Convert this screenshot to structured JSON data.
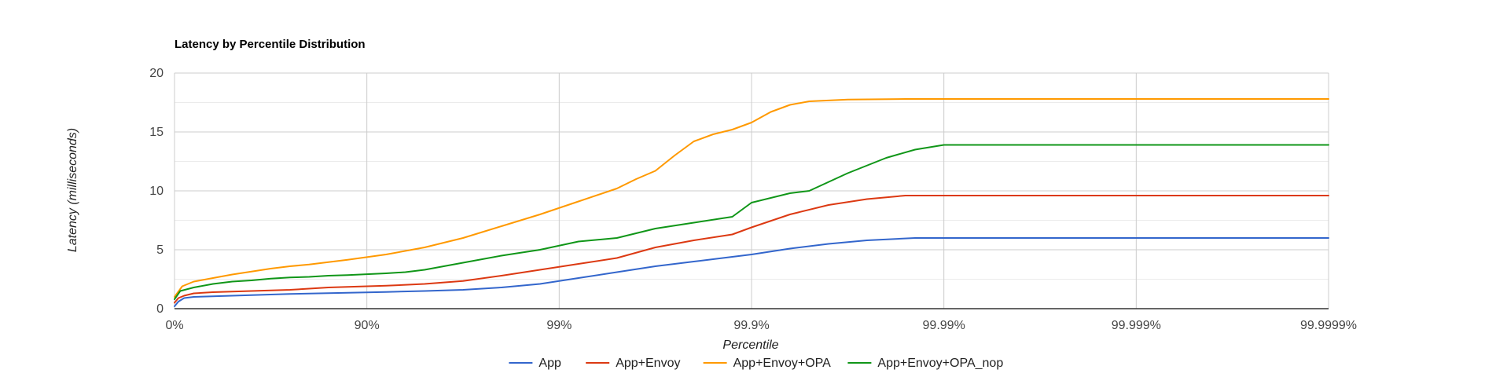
{
  "chart_data": {
    "type": "line",
    "title": "Latency by Percentile Distribution",
    "xlabel": "Percentile",
    "ylabel": "Latency (milliseconds)",
    "x_scale": "percentile (log of 1/(1-p))",
    "x_ticks": [
      "0%",
      "90%",
      "99%",
      "99.9%",
      "99.99%",
      "99.999%",
      "99.9999%"
    ],
    "ylim": [
      0,
      20
    ],
    "y_ticks": [
      0,
      5,
      10,
      15,
      20
    ],
    "grid": true,
    "legend_position": "bottom",
    "series": [
      {
        "name": "App",
        "color": "#3366cc",
        "points": [
          [
            0,
            0.2
          ],
          [
            0.02,
            0.6
          ],
          [
            0.05,
            0.9
          ],
          [
            0.1,
            1.0
          ],
          [
            0.2,
            1.05
          ],
          [
            0.3,
            1.1
          ],
          [
            0.4,
            1.15
          ],
          [
            0.5,
            1.2
          ],
          [
            0.6,
            1.25
          ],
          [
            0.7,
            1.28
          ],
          [
            0.8,
            1.32
          ],
          [
            0.9,
            1.35
          ],
          [
            1.1,
            1.42
          ],
          [
            1.3,
            1.5
          ],
          [
            1.5,
            1.6
          ],
          [
            1.7,
            1.8
          ],
          [
            1.9,
            2.1
          ],
          [
            2.1,
            2.6
          ],
          [
            2.3,
            3.1
          ],
          [
            2.5,
            3.6
          ],
          [
            2.7,
            4.0
          ],
          [
            2.9,
            4.4
          ],
          [
            3.0,
            4.6
          ],
          [
            3.2,
            5.1
          ],
          [
            3.4,
            5.5
          ],
          [
            3.6,
            5.8
          ],
          [
            3.85,
            6.0
          ],
          [
            6.0,
            6.0
          ]
        ]
      },
      {
        "name": "App+Envoy",
        "color": "#dc3912",
        "points": [
          [
            0,
            0.5
          ],
          [
            0.02,
            0.9
          ],
          [
            0.05,
            1.1
          ],
          [
            0.1,
            1.3
          ],
          [
            0.2,
            1.4
          ],
          [
            0.3,
            1.45
          ],
          [
            0.4,
            1.5
          ],
          [
            0.5,
            1.55
          ],
          [
            0.6,
            1.6
          ],
          [
            0.7,
            1.7
          ],
          [
            0.8,
            1.8
          ],
          [
            0.9,
            1.85
          ],
          [
            1.1,
            1.95
          ],
          [
            1.3,
            2.1
          ],
          [
            1.5,
            2.35
          ],
          [
            1.7,
            2.8
          ],
          [
            1.9,
            3.3
          ],
          [
            2.1,
            3.8
          ],
          [
            2.3,
            4.3
          ],
          [
            2.5,
            5.2
          ],
          [
            2.7,
            5.8
          ],
          [
            2.9,
            6.3
          ],
          [
            3.0,
            6.9
          ],
          [
            3.2,
            8.0
          ],
          [
            3.4,
            8.8
          ],
          [
            3.6,
            9.3
          ],
          [
            3.8,
            9.6
          ],
          [
            6.0,
            9.6
          ]
        ]
      },
      {
        "name": "App+Envoy+OPA",
        "color": "#ff9900",
        "points": [
          [
            0,
            1.0
          ],
          [
            0.04,
            1.9
          ],
          [
            0.1,
            2.3
          ],
          [
            0.2,
            2.6
          ],
          [
            0.3,
            2.9
          ],
          [
            0.4,
            3.15
          ],
          [
            0.5,
            3.4
          ],
          [
            0.6,
            3.6
          ],
          [
            0.7,
            3.75
          ],
          [
            0.8,
            3.95
          ],
          [
            0.9,
            4.15
          ],
          [
            1.1,
            4.6
          ],
          [
            1.3,
            5.2
          ],
          [
            1.5,
            6.0
          ],
          [
            1.7,
            7.0
          ],
          [
            1.9,
            8.0
          ],
          [
            2.1,
            9.1
          ],
          [
            2.3,
            10.2
          ],
          [
            2.4,
            11.0
          ],
          [
            2.5,
            11.7
          ],
          [
            2.6,
            13.0
          ],
          [
            2.7,
            14.2
          ],
          [
            2.8,
            14.8
          ],
          [
            2.9,
            15.2
          ],
          [
            3.0,
            15.8
          ],
          [
            3.1,
            16.7
          ],
          [
            3.2,
            17.3
          ],
          [
            3.3,
            17.6
          ],
          [
            3.5,
            17.75
          ],
          [
            3.8,
            17.8
          ],
          [
            6.0,
            17.8
          ]
        ]
      },
      {
        "name": "App+Envoy+OPA_nop",
        "color": "#109618",
        "points": [
          [
            0,
            0.8
          ],
          [
            0.03,
            1.5
          ],
          [
            0.1,
            1.8
          ],
          [
            0.2,
            2.1
          ],
          [
            0.3,
            2.3
          ],
          [
            0.4,
            2.4
          ],
          [
            0.5,
            2.55
          ],
          [
            0.6,
            2.65
          ],
          [
            0.7,
            2.7
          ],
          [
            0.8,
            2.8
          ],
          [
            0.9,
            2.85
          ],
          [
            1.1,
            3.0
          ],
          [
            1.2,
            3.1
          ],
          [
            1.3,
            3.3
          ],
          [
            1.5,
            3.9
          ],
          [
            1.7,
            4.5
          ],
          [
            1.9,
            5.0
          ],
          [
            2.1,
            5.7
          ],
          [
            2.3,
            6.0
          ],
          [
            2.5,
            6.8
          ],
          [
            2.7,
            7.3
          ],
          [
            2.9,
            7.8
          ],
          [
            3.0,
            9.0
          ],
          [
            3.2,
            9.8
          ],
          [
            3.3,
            10.0
          ],
          [
            3.5,
            11.5
          ],
          [
            3.7,
            12.8
          ],
          [
            3.85,
            13.5
          ],
          [
            4.0,
            13.9
          ],
          [
            6.0,
            13.9
          ]
        ]
      }
    ]
  }
}
